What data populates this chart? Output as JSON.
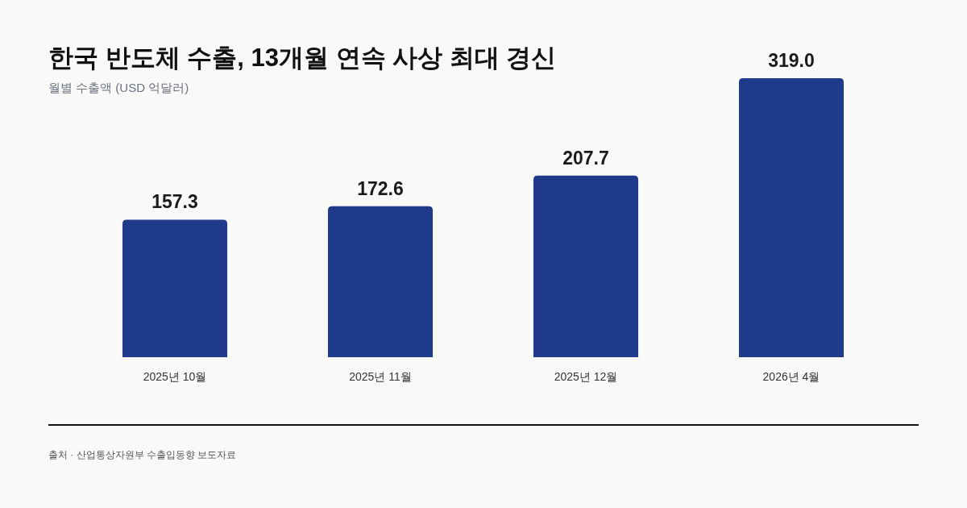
{
  "chart_data": {
    "type": "bar",
    "title": "한국 반도체 수출, 13개월 연속 사상 최대 경신",
    "subtitle": "월별 수출액 (USD 억달러)",
    "categories": [
      "2025년 10월",
      "2025년 11월",
      "2025년 12월",
      "2026년 4월"
    ],
    "values": [
      157.3,
      172.6,
      207.7,
      319.0
    ],
    "value_labels": [
      "157.3",
      "172.6",
      "207.7",
      "319.0"
    ],
    "color": "#1f3a8a",
    "annotations": [
      "출처 · 산업통상자원부 수출입동향 보도자료"
    ]
  }
}
